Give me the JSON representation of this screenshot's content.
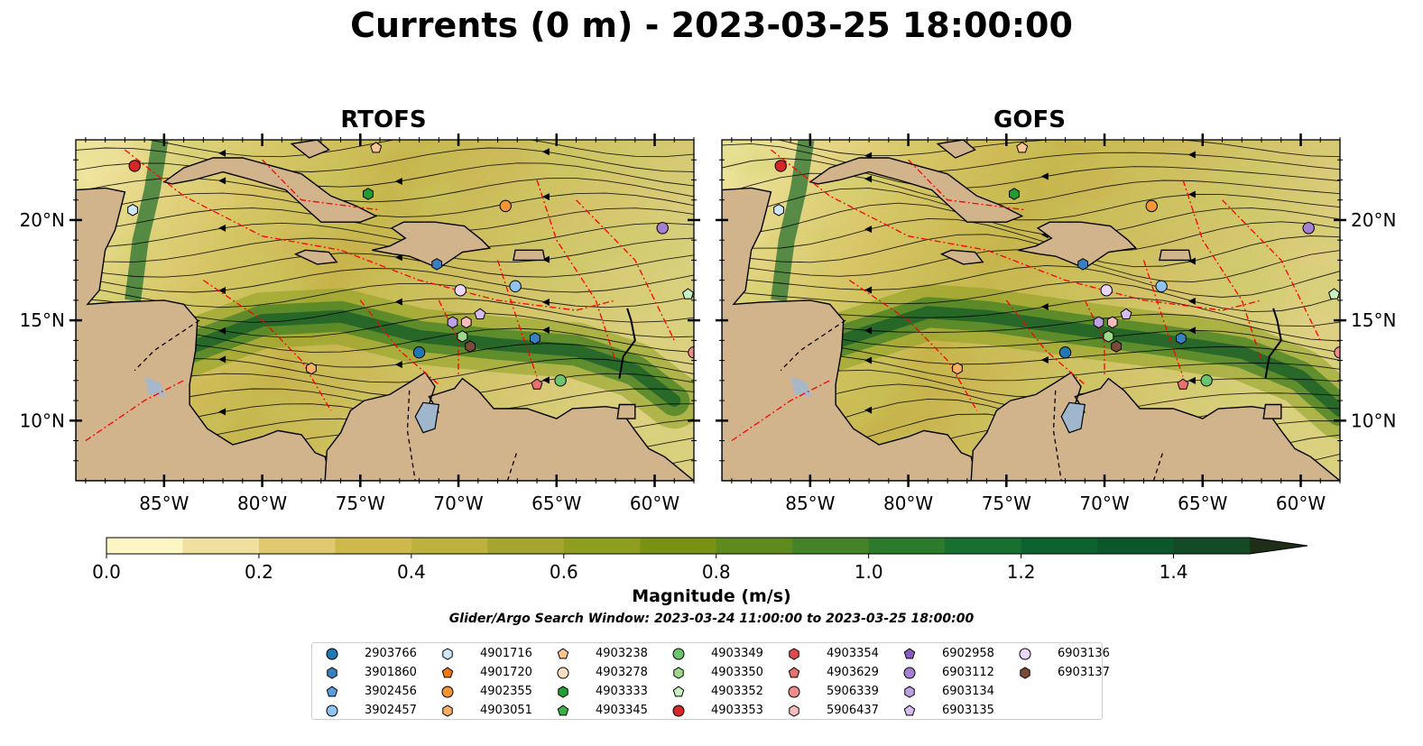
{
  "title": "Currents (0 m) - 2023-03-25 18:00:00",
  "panels": [
    {
      "title": "RTOFS"
    },
    {
      "title": "GOFS"
    }
  ],
  "axes": {
    "lat_labels": [
      "20°N",
      "15°N",
      "10°N"
    ],
    "lon_labels": [
      "85°W",
      "80°W",
      "75°W",
      "70°W",
      "65°W",
      "60°W"
    ]
  },
  "colorbar": {
    "label": "Magnitude (m/s)",
    "tick_labels": [
      "0.0",
      "0.2",
      "0.4",
      "0.6",
      "0.8",
      "1.0",
      "1.2",
      "1.4"
    ],
    "range": [
      0,
      1.5
    ],
    "extend": "max",
    "colors": [
      "#fbf6c4",
      "#efe0a0",
      "#dfc971",
      "#d0b94c",
      "#bcb23d",
      "#a6a52e",
      "#8f9e1f",
      "#789313",
      "#5f8a1d",
      "#468228",
      "#2c7b2c",
      "#17702f",
      "#0d632e",
      "#0b572a",
      "#154a26",
      "#1e3f22",
      "#1e2e17"
    ]
  },
  "search_window": "Glider/Argo Search Window: 2023-03-24 11:00:00 to 2023-03-25 18:00:00",
  "map_colors": {
    "land": "#d2b48c",
    "lake": "#9fb6cd",
    "boundary": "#ff0000",
    "coast": "#000000"
  },
  "legend": [
    {
      "id": "2903766",
      "marker": "circle",
      "color": "#1f77b4"
    },
    {
      "id": "3901860",
      "marker": "hexagon",
      "color": "#3a80c0"
    },
    {
      "id": "3902456",
      "marker": "pentagon",
      "color": "#5b9ee0"
    },
    {
      "id": "3902457",
      "marker": "circle",
      "color": "#8fc2ee"
    },
    {
      "id": "4901716",
      "marker": "hexagon",
      "color": "#cde8fb"
    },
    {
      "id": "4901720",
      "marker": "pentagon",
      "color": "#ef7b10"
    },
    {
      "id": "4902355",
      "marker": "circle",
      "color": "#f39435"
    },
    {
      "id": "4903051",
      "marker": "hexagon",
      "color": "#f8b067"
    },
    {
      "id": "4903238",
      "marker": "pentagon",
      "color": "#f9c592"
    },
    {
      "id": "4903278",
      "marker": "circle",
      "color": "#fde0c3"
    },
    {
      "id": "4903333",
      "marker": "hexagon",
      "color": "#239c31"
    },
    {
      "id": "4903345",
      "marker": "pentagon",
      "color": "#3bb14a"
    },
    {
      "id": "4903349",
      "marker": "circle",
      "color": "#6cc46d"
    },
    {
      "id": "4903350",
      "marker": "hexagon",
      "color": "#9ed88d"
    },
    {
      "id": "4903352",
      "marker": "pentagon",
      "color": "#c9f0c0"
    },
    {
      "id": "4903353",
      "marker": "circle",
      "color": "#d62728"
    },
    {
      "id": "4903354",
      "marker": "hexagon",
      "color": "#e04a4a"
    },
    {
      "id": "4903629",
      "marker": "pentagon",
      "color": "#ea7070"
    },
    {
      "id": "5906339",
      "marker": "circle",
      "color": "#f08c8c"
    },
    {
      "id": "5906437",
      "marker": "hexagon",
      "color": "#f9bcbc"
    },
    {
      "id": "6902958",
      "marker": "pentagon",
      "color": "#8a5cc0"
    },
    {
      "id": "6903112",
      "marker": "circle",
      "color": "#a57fd2"
    },
    {
      "id": "6903134",
      "marker": "hexagon",
      "color": "#bea0e4"
    },
    {
      "id": "6903135",
      "marker": "pentagon",
      "color": "#d7bcf3"
    },
    {
      "id": "6903136",
      "marker": "circle",
      "color": "#ecd8fa"
    },
    {
      "id": "6903137",
      "marker": "hexagon",
      "color": "#7b4b35"
    }
  ],
  "floats": [
    {
      "id": "4903353",
      "lon": -86.5,
      "lat": 22.7
    },
    {
      "id": "4901716",
      "lon": -86.6,
      "lat": 20.5
    },
    {
      "id": "4903238",
      "lon": -74.2,
      "lat": 23.6
    },
    {
      "id": "4903333",
      "lon": -74.6,
      "lat": 21.3
    },
    {
      "id": "4902355",
      "lon": -67.6,
      "lat": 20.7
    },
    {
      "id": "6903112",
      "lon": -59.6,
      "lat": 19.6
    },
    {
      "id": "3901860",
      "lon": -71.1,
      "lat": 17.8
    },
    {
      "id": "6903136",
      "lon": -69.9,
      "lat": 16.5
    },
    {
      "id": "3902457",
      "lon": -67.1,
      "lat": 16.7
    },
    {
      "id": "4903352",
      "lon": -58.3,
      "lat": 16.3
    },
    {
      "id": "6903135",
      "lon": -68.9,
      "lat": 15.3
    },
    {
      "id": "6903134",
      "lon": -70.3,
      "lat": 14.9
    },
    {
      "id": "5906437",
      "lon": -69.6,
      "lat": 14.9
    },
    {
      "id": "4903350",
      "lon": -69.8,
      "lat": 14.2
    },
    {
      "id": "6903137",
      "lon": -69.4,
      "lat": 13.7
    },
    {
      "id": "2903766",
      "lon": -72.0,
      "lat": 13.4
    },
    {
      "id": "3901860",
      "lon": -66.1,
      "lat": 14.1
    },
    {
      "id": "4903051",
      "lon": -77.5,
      "lat": 12.6
    },
    {
      "id": "5906339",
      "lon": -58.0,
      "lat": 13.4
    },
    {
      "id": "4903629",
      "lon": -66.0,
      "lat": 11.8
    },
    {
      "id": "4903349",
      "lon": -64.8,
      "lat": 12.0
    }
  ]
}
